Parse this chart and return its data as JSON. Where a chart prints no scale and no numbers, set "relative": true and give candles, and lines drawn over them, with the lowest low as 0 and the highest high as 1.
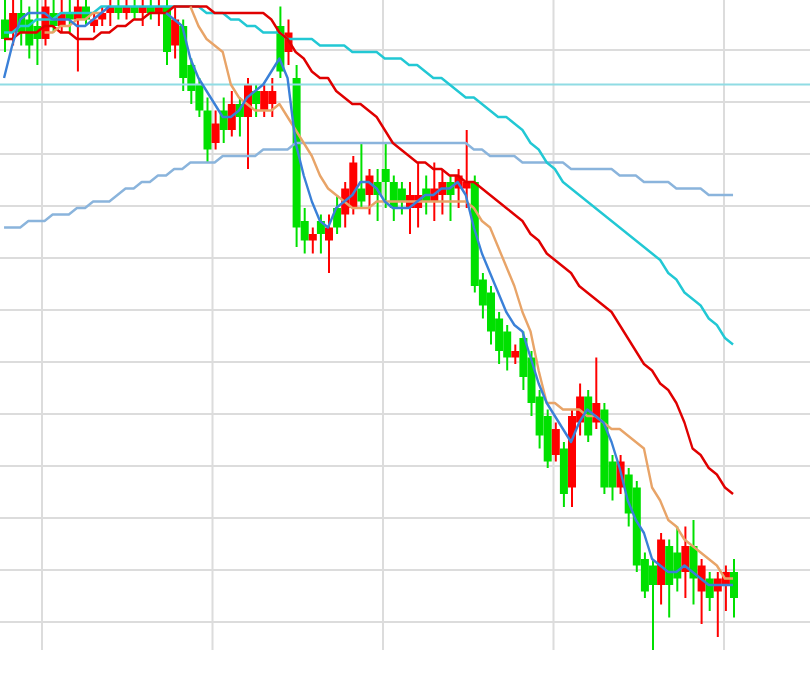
{
  "chart_data": {
    "type": "candlestick",
    "relative": true,
    "grid": true,
    "categories": [
      null,
      null,
      null,
      null,
      null,
      null,
      null,
      null,
      null,
      null,
      null,
      null,
      null,
      null,
      null,
      null,
      null,
      null,
      null,
      null,
      null,
      null,
      null,
      null,
      null,
      null,
      null,
      null,
      null,
      null,
      null,
      null,
      null,
      null,
      null,
      null,
      null,
      null,
      null,
      null,
      null,
      null,
      null,
      null,
      null,
      null,
      null,
      null,
      null,
      null,
      null,
      null,
      null,
      null,
      null,
      null,
      null,
      null,
      null,
      null,
      null,
      null,
      null,
      null,
      null,
      null,
      null,
      null,
      null,
      null,
      null,
      null,
      null,
      null,
      null,
      null,
      null,
      null,
      null,
      null,
      null,
      null,
      null,
      null,
      null,
      null,
      null,
      null,
      null,
      null,
      null
    ],
    "ref_lines": [
      {
        "axis": "y",
        "value": 0.87,
        "color": "#90dce4"
      }
    ],
    "series": [
      {
        "ohlc": [
          [
            0.97,
            1,
            0.92,
            0.94
          ],
          [
            0.95,
            1,
            0.93,
            0.98
          ],
          [
            0.98,
            1,
            0.93,
            0.95
          ],
          [
            0.97,
            0.99,
            0.91,
            0.93
          ],
          [
            0.96,
            1,
            0.9,
            0.94
          ],
          [
            0.94,
            1,
            0.93,
            0.99
          ],
          [
            0.98,
            1,
            0.95,
            0.96
          ],
          [
            0.96,
            1,
            0.95,
            0.98
          ],
          [
            0.98,
            1,
            0.95,
            0.97
          ],
          [
            0.97,
            1,
            0.89,
            0.99
          ],
          [
            0.99,
            1,
            0.96,
            0.97
          ],
          [
            0.96,
            0.98,
            0.95,
            0.97
          ],
          [
            0.97,
            0.99,
            0.96,
            0.98
          ],
          [
            0.98,
            1,
            0.96,
            0.99
          ],
          [
            0.99,
            1,
            0.97,
            0.98
          ],
          [
            0.98,
            1,
            0.97,
            0.99
          ],
          [
            0.99,
            1,
            0.97,
            0.98
          ],
          [
            0.98,
            1,
            0.96,
            0.99
          ],
          [
            0.99,
            1,
            0.97,
            0.98
          ],
          [
            0.98,
            1,
            0.96,
            0.99
          ],
          [
            0.99,
            1,
            0.9,
            0.92
          ],
          [
            0.93,
            0.99,
            0.91,
            0.97
          ],
          [
            0.96,
            0.97,
            0.86,
            0.88
          ],
          [
            0.9,
            0.91,
            0.84,
            0.86
          ],
          [
            0.87,
            0.88,
            0.82,
            0.83
          ],
          [
            0.83,
            0.85,
            0.75,
            0.77
          ],
          [
            0.78,
            0.83,
            0.77,
            0.81
          ],
          [
            0.83,
            0.85,
            0.78,
            0.8
          ],
          [
            0.8,
            0.86,
            0.79,
            0.84
          ],
          [
            0.84,
            0.85,
            0.79,
            0.82
          ],
          [
            0.82,
            0.88,
            0.74,
            0.87
          ],
          [
            0.86,
            0.87,
            0.82,
            0.84
          ],
          [
            0.83,
            0.87,
            0.82,
            0.86
          ],
          [
            0.84,
            0.88,
            0.82,
            0.86
          ],
          [
            0.96,
            0.99,
            0.88,
            0.89
          ],
          [
            0.92,
            0.97,
            0.9,
            0.95
          ],
          [
            0.88,
            0.9,
            0.62,
            0.65
          ],
          [
            0.66,
            0.68,
            0.61,
            0.63
          ],
          [
            0.63,
            0.65,
            0.61,
            0.64
          ],
          [
            0.66,
            0.67,
            0.61,
            0.64
          ],
          [
            0.63,
            0.67,
            0.58,
            0.65
          ],
          [
            0.68,
            0.7,
            0.64,
            0.65
          ],
          [
            0.67,
            0.72,
            0.65,
            0.71
          ],
          [
            0.68,
            0.76,
            0.67,
            0.75
          ],
          [
            0.71,
            0.78,
            0.68,
            0.69
          ],
          [
            0.7,
            0.74,
            0.67,
            0.73
          ],
          [
            0.72,
            0.74,
            0.66,
            0.7
          ],
          [
            0.74,
            0.78,
            0.68,
            0.72
          ],
          [
            0.72,
            0.73,
            0.66,
            0.68
          ],
          [
            0.71,
            0.72,
            0.67,
            0.69
          ],
          [
            0.68,
            0.72,
            0.64,
            0.7
          ],
          [
            0.68,
            0.75,
            0.65,
            0.7
          ],
          [
            0.71,
            0.73,
            0.67,
            0.69
          ],
          [
            0.69,
            0.75,
            0.66,
            0.71
          ],
          [
            0.7,
            0.74,
            0.67,
            0.72
          ],
          [
            0.72,
            0.73,
            0.66,
            0.7
          ],
          [
            0.71,
            0.74,
            0.68,
            0.73
          ],
          [
            0.71,
            0.8,
            0.68,
            0.72
          ],
          [
            0.72,
            0.73,
            0.55,
            0.56
          ],
          [
            0.57,
            0.58,
            0.51,
            0.53
          ],
          [
            0.55,
            0.56,
            0.47,
            0.49
          ],
          [
            0.51,
            0.52,
            0.44,
            0.46
          ],
          [
            0.49,
            0.5,
            0.43,
            0.45
          ],
          [
            0.45,
            0.47,
            0.44,
            0.46
          ],
          [
            0.48,
            0.49,
            0.4,
            0.42
          ],
          [
            0.45,
            0.46,
            0.36,
            0.38
          ],
          [
            0.39,
            0.4,
            0.31,
            0.33
          ],
          [
            0.36,
            0.37,
            0.28,
            0.29
          ],
          [
            0.3,
            0.35,
            0.29,
            0.34
          ],
          [
            0.31,
            0.32,
            0.22,
            0.24
          ],
          [
            0.25,
            0.37,
            0.22,
            0.36
          ],
          [
            0.35,
            0.41,
            0.33,
            0.39
          ],
          [
            0.39,
            0.4,
            0.32,
            0.33
          ],
          [
            0.35,
            0.45,
            0.34,
            0.38
          ],
          [
            0.37,
            0.38,
            0.24,
            0.25
          ],
          [
            0.29,
            0.3,
            0.23,
            0.25
          ],
          [
            0.25,
            0.3,
            0.24,
            0.29
          ],
          [
            0.27,
            0.28,
            0.19,
            0.21
          ],
          [
            0.25,
            0.26,
            0.12,
            0.13
          ],
          [
            0.14,
            0.15,
            0.08,
            0.09
          ],
          [
            0.13,
            0.14,
            0,
            0.1
          ],
          [
            0.1,
            0.18,
            0.07,
            0.17
          ],
          [
            0.16,
            0.17,
            0.05,
            0.1
          ],
          [
            0.15,
            0.19,
            0.09,
            0.11
          ],
          [
            0.12,
            0.19,
            0.08,
            0.16
          ],
          [
            0.16,
            0.2,
            0.07,
            0.11
          ],
          [
            0.09,
            0.14,
            0.04,
            0.13
          ],
          [
            0.11,
            0.12,
            0.06,
            0.08
          ],
          [
            0.09,
            0.12,
            0.02,
            0.11
          ],
          [
            0.1,
            0.13,
            0.06,
            0.12
          ],
          [
            0.12,
            0.14,
            0.05,
            0.08
          ]
        ],
        "colors": [
          "#00e000",
          "#ff0000",
          "#00e000",
          "#00e000",
          "#00e000",
          "#ff0000",
          "#00e000",
          "#ff0000",
          "#00e000",
          "#ff0000",
          "#00e000",
          "#ff0000",
          "#ff0000",
          "#ff0000",
          "#00e000",
          "#ff0000",
          "#00e000",
          "#ff0000",
          "#00e000",
          "#ff0000",
          "#00e000",
          "#ff0000",
          "#00e000",
          "#00e000",
          "#00e000",
          "#00e000",
          "#ff0000",
          "#00e000",
          "#ff0000",
          "#00e000",
          "#ff0000",
          "#00e000",
          "#ff0000",
          "#ff0000",
          "#00e000",
          "#ff0000",
          "#00e000",
          "#00e000",
          "#ff0000",
          "#00e000",
          "#ff0000",
          "#00e000",
          "#ff0000",
          "#ff0000",
          "#00e000",
          "#ff0000",
          "#00e000",
          "#00e000",
          "#00e000",
          "#00e000",
          "#ff0000",
          "#ff0000",
          "#00e000",
          "#ff0000",
          "#ff0000",
          "#00e000",
          "#ff0000",
          "#ff0000",
          "#00e000",
          "#00e000",
          "#00e000",
          "#00e000",
          "#00e000",
          "#ff0000",
          "#00e000",
          "#00e000",
          "#00e000",
          "#00e000",
          "#ff0000",
          "#00e000",
          "#ff0000",
          "#ff0000",
          "#00e000",
          "#ff0000",
          "#00e000",
          "#00e000",
          "#ff0000",
          "#00e000",
          "#00e000",
          "#00e000",
          "#00e000",
          "#ff0000",
          "#00e000",
          "#00e000",
          "#ff0000",
          "#00e000",
          "#ff0000",
          "#00e000",
          "#ff0000",
          "#ff0000",
          "#00e000"
        ]
      },
      {
        "type": "line",
        "color": "#8ab4dc",
        "values": [
          0.65,
          0.65,
          0.65,
          0.66,
          0.66,
          0.66,
          0.67,
          0.67,
          0.67,
          0.68,
          0.68,
          0.69,
          0.69,
          0.69,
          0.7,
          0.71,
          0.71,
          0.72,
          0.72,
          0.73,
          0.73,
          0.74,
          0.74,
          0.75,
          0.75,
          0.75,
          0.75,
          0.76,
          0.76,
          0.76,
          0.76,
          0.76,
          0.77,
          0.77,
          0.77,
          0.77,
          0.78,
          0.78,
          0.78,
          0.78,
          0.78,
          0.78,
          0.78,
          0.78,
          0.78,
          0.78,
          0.78,
          0.78,
          0.78,
          0.78,
          0.78,
          0.78,
          0.78,
          0.78,
          0.78,
          0.78,
          0.78,
          0.78,
          0.77,
          0.77,
          0.76,
          0.76,
          0.76,
          0.76,
          0.75,
          0.75,
          0.75,
          0.75,
          0.75,
          0.75,
          0.74,
          0.74,
          0.74,
          0.74,
          0.74,
          0.74,
          0.73,
          0.73,
          0.73,
          0.72,
          0.72,
          0.72,
          0.72,
          0.71,
          0.71,
          0.71,
          0.71,
          0.7,
          0.7,
          0.7,
          0.7
        ]
      },
      {
        "type": "line",
        "color": "#22c8d4",
        "values": [
          0.95,
          0.95,
          0.96,
          0.96,
          0.97,
          0.97,
          0.97,
          0.98,
          0.98,
          0.98,
          0.98,
          0.98,
          0.99,
          0.99,
          0.99,
          0.99,
          0.99,
          0.99,
          0.99,
          0.99,
          0.99,
          0.99,
          0.99,
          0.99,
          0.99,
          0.98,
          0.98,
          0.98,
          0.97,
          0.97,
          0.96,
          0.96,
          0.95,
          0.95,
          0.95,
          0.94,
          0.94,
          0.94,
          0.94,
          0.93,
          0.93,
          0.93,
          0.93,
          0.92,
          0.92,
          0.92,
          0.92,
          0.91,
          0.91,
          0.91,
          0.9,
          0.9,
          0.89,
          0.88,
          0.88,
          0.87,
          0.86,
          0.85,
          0.85,
          0.84,
          0.83,
          0.82,
          0.82,
          0.81,
          0.8,
          0.78,
          0.77,
          0.75,
          0.74,
          0.72,
          0.71,
          0.7,
          0.69,
          0.68,
          0.67,
          0.66,
          0.65,
          0.64,
          0.63,
          0.62,
          0.61,
          0.6,
          0.58,
          0.57,
          0.55,
          0.54,
          0.53,
          0.51,
          0.5,
          0.48,
          0.47
        ]
      },
      {
        "type": "line",
        "color": "#e00000",
        "values": [
          0.94,
          0.94,
          0.95,
          0.95,
          0.95,
          0.96,
          0.96,
          0.95,
          0.95,
          0.94,
          0.94,
          0.94,
          0.95,
          0.95,
          0.96,
          0.96,
          0.97,
          0.97,
          0.98,
          0.98,
          0.98,
          0.99,
          0.99,
          0.99,
          0.99,
          0.99,
          0.98,
          0.98,
          0.98,
          0.98,
          0.98,
          0.98,
          0.98,
          0.97,
          0.95,
          0.94,
          0.92,
          0.91,
          0.89,
          0.88,
          0.88,
          0.86,
          0.85,
          0.84,
          0.84,
          0.83,
          0.82,
          0.8,
          0.78,
          0.77,
          0.76,
          0.75,
          0.75,
          0.74,
          0.74,
          0.73,
          0.73,
          0.72,
          0.72,
          0.71,
          0.7,
          0.69,
          0.68,
          0.67,
          0.66,
          0.64,
          0.63,
          0.61,
          0.6,
          0.59,
          0.58,
          0.56,
          0.55,
          0.54,
          0.53,
          0.52,
          0.5,
          0.48,
          0.46,
          0.44,
          0.43,
          0.41,
          0.4,
          0.38,
          0.35,
          0.31,
          0.3,
          0.28,
          0.27,
          0.25,
          0.24
        ]
      },
      {
        "type": "line",
        "color": "#e8a468",
        "values": [
          null,
          null,
          null,
          null,
          null,
          0.95,
          0.95,
          0.96,
          0.96,
          0.97,
          0.97,
          0.98,
          0.98,
          null,
          null,
          null,
          null,
          null,
          null,
          null,
          null,
          null,
          null,
          0.99,
          0.96,
          0.94,
          0.93,
          0.92,
          0.87,
          0.85,
          0.84,
          0.83,
          0.83,
          0.83,
          0.84,
          0.82,
          0.8,
          0.78,
          0.76,
          0.73,
          0.71,
          0.7,
          0.69,
          0.68,
          0.68,
          0.68,
          0.69,
          0.69,
          0.69,
          0.69,
          0.69,
          0.69,
          0.69,
          0.69,
          0.69,
          0.69,
          0.69,
          0.69,
          0.68,
          0.66,
          0.65,
          0.62,
          0.59,
          0.56,
          0.52,
          0.49,
          0.43,
          0.38,
          0.38,
          0.37,
          0.37,
          0.37,
          0.36,
          0.36,
          0.35,
          0.34,
          0.34,
          0.33,
          0.32,
          0.31,
          0.25,
          0.23,
          0.2,
          0.19,
          0.17,
          0.16,
          0.15,
          0.14,
          0.13,
          0.11,
          0.11
        ]
      },
      {
        "type": "line",
        "color": "#3a80d8",
        "values": [
          0.88,
          0.93,
          0.97,
          0.98,
          0.98,
          0.98,
          0.97,
          0.97,
          0.97,
          0.96,
          0.96,
          0.97,
          0.98,
          0.99,
          null,
          null,
          null,
          null,
          null,
          null,
          0.98,
          0.97,
          0.96,
          0.91,
          0.88,
          0.86,
          0.84,
          0.82,
          0.82,
          0.83,
          0.85,
          0.86,
          0.87,
          0.89,
          0.91,
          0.88,
          0.78,
          0.73,
          0.69,
          0.66,
          0.65,
          0.68,
          0.69,
          0.7,
          0.72,
          0.72,
          0.71,
          0.69,
          0.68,
          0.68,
          0.68,
          0.69,
          0.7,
          0.7,
          0.71,
          0.71,
          0.72,
          0.7,
          0.65,
          0.61,
          0.58,
          0.55,
          0.52,
          0.5,
          0.49,
          0.45,
          0.41,
          0.38,
          0.36,
          0.34,
          0.32,
          0.35,
          0.37,
          0.36,
          0.35,
          0.32,
          0.28,
          0.23,
          0.2,
          0.18,
          0.14,
          0.13,
          0.12,
          0.12,
          0.13,
          0.12,
          0.11,
          0.1,
          0.1,
          0.1,
          0.1
        ]
      }
    ]
  }
}
